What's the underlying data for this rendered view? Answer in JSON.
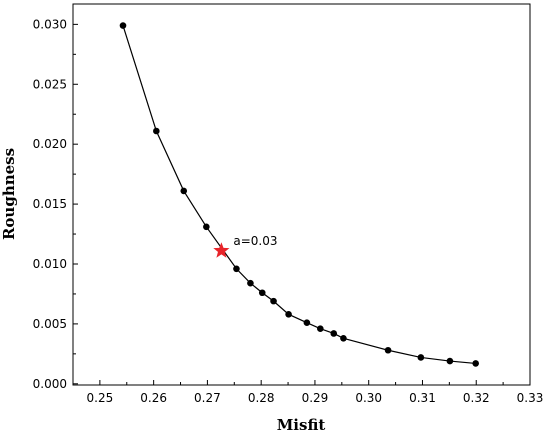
{
  "chart_data": {
    "type": "line",
    "title": "",
    "xlabel": "Misfit",
    "ylabel": "Roughness",
    "xlim": [
      0.245,
      0.33
    ],
    "ylim": [
      -0.0001,
      0.0317
    ],
    "x_ticks": [
      0.25,
      0.26,
      0.27,
      0.28,
      0.29,
      0.3,
      0.31,
      0.32,
      0.33
    ],
    "x_tick_labels": [
      "0.25",
      "0.26",
      "0.27",
      "0.28",
      "0.29",
      "0.30",
      "0.31",
      "0.32",
      "0.33"
    ],
    "y_ticks": [
      0.0,
      0.005,
      0.01,
      0.015,
      0.02,
      0.025,
      0.03
    ],
    "y_tick_labels": [
      "0.000",
      "0.005",
      "0.010",
      "0.015",
      "0.020",
      "0.025",
      "0.030"
    ],
    "grid": false,
    "legend": "none",
    "series": [
      {
        "color": "#000000",
        "marker": "circle",
        "x": [
          0.2543,
          0.2605,
          0.2656,
          0.2698,
          0.2754,
          0.278,
          0.2802,
          0.2823,
          0.2851,
          0.2885,
          0.291,
          0.2935,
          0.2953,
          0.3036,
          0.3097,
          0.3151,
          0.3199
        ],
        "y": [
          0.0299,
          0.0211,
          0.0161,
          0.0131,
          0.0096,
          0.0084,
          0.0076,
          0.0069,
          0.0058,
          0.0051,
          0.0046,
          0.0042,
          0.0038,
          0.0028,
          0.0022,
          0.0019,
          0.0017
        ]
      }
    ],
    "highlight": {
      "x": 0.2726,
      "y": 0.0111,
      "label": "a=0.03",
      "color": "#e8242a",
      "marker": "star"
    }
  }
}
